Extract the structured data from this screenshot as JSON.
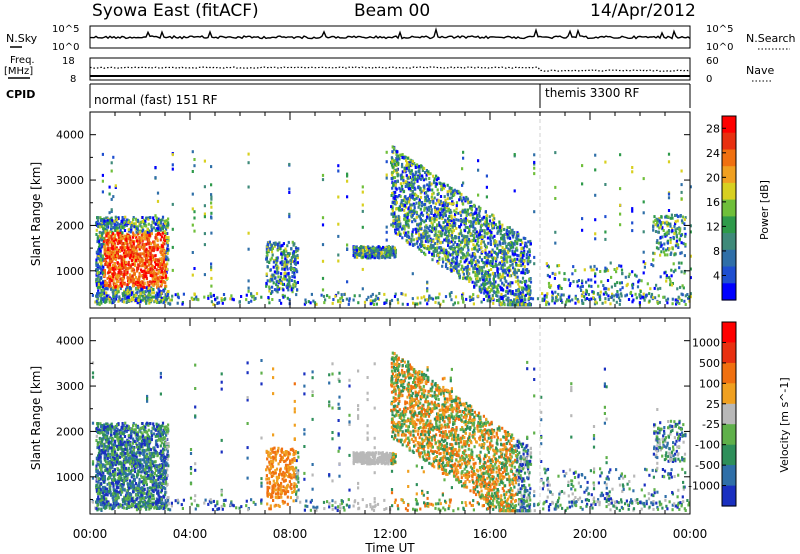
{
  "header": {
    "title": "Syowa East (fitACF)",
    "beam": "Beam 00",
    "date": "14/Apr/2012"
  },
  "noise_panel": {
    "left_label": "N.Sky",
    "right_label": "N.Search",
    "tick_top": "10^5",
    "tick_bottom": "10^0",
    "right_tick_top": "10^5",
    "right_tick_bottom": "10^0"
  },
  "freq_panel": {
    "left_label_line1": "Freq.",
    "left_label_line2": "[MHz]",
    "left_tick_top": "18",
    "left_tick_bottom": "8",
    "right_label": "Nave",
    "right_tick_top": "60",
    "right_tick_bottom": "0"
  },
  "cpid": {
    "label": "CPID",
    "modes": [
      {
        "name": "normal (fast) 151 RF",
        "start_hour": 0
      },
      {
        "name": "themis 3300 RF",
        "start_hour": 18
      }
    ]
  },
  "chart_data": [
    {
      "type": "heatmap",
      "title": "Power",
      "ylabel": "Slant Range [km]",
      "xlabel": "Time UT",
      "x_ticks": [
        "00:00",
        "04:00",
        "08:00",
        "12:00",
        "16:00",
        "20:00",
        "00:00"
      ],
      "xlim_hours": [
        0,
        24
      ],
      "y_ticks": [
        1000,
        2000,
        3000,
        4000
      ],
      "ylim": [
        180,
        4500
      ],
      "colorbar": {
        "label": "Power [dB]",
        "ticks": [
          "4",
          "8",
          "12",
          "16",
          "20",
          "24",
          "28"
        ],
        "range": [
          0,
          30
        ],
        "colors": [
          "#0000ff",
          "#1f4fd0",
          "#2f6fa8",
          "#3f8a7a",
          "#2e9a4a",
          "#6fbf3a",
          "#d8d020",
          "#f0a020",
          "#f07010",
          "#e83010",
          "#ff0000"
        ]
      }
    },
    {
      "type": "heatmap",
      "title": "Velocity",
      "ylabel": "Slant Range [km]",
      "xlabel": "Time UT",
      "x_ticks": [
        "00:00",
        "04:00",
        "08:00",
        "12:00",
        "16:00",
        "20:00",
        "00:00"
      ],
      "xlim_hours": [
        0,
        24
      ],
      "y_ticks": [
        1000,
        2000,
        3000,
        4000
      ],
      "ylim": [
        180,
        4500
      ],
      "colorbar": {
        "label": "Velocity [m s^-1]",
        "ticks": [
          "1000",
          "500",
          "100",
          "25",
          "-25",
          "-100",
          "-500",
          "-1000"
        ],
        "colors": [
          "#1a30c0",
          "#2f6fa8",
          "#2e8f5a",
          "#5fb04a",
          "#b8b8b8",
          "#f0a020",
          "#f07010",
          "#e83010",
          "#ff0000"
        ]
      }
    }
  ]
}
